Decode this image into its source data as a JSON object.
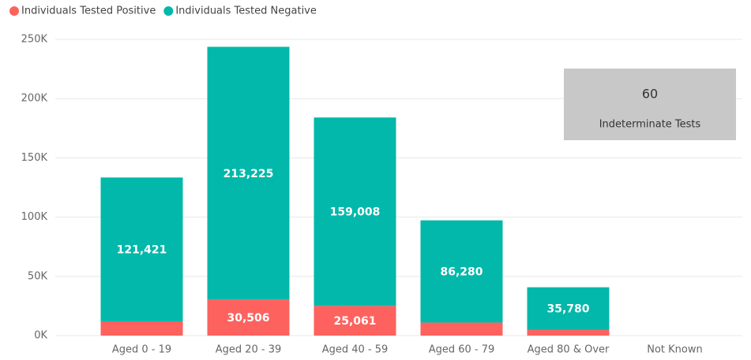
{
  "chart_data": {
    "type": "stacked_bar",
    "categories": [
      "Aged 0 - 19",
      "Aged 20 - 39",
      "Aged 40 - 59",
      "Aged 60 - 79",
      "Aged 80 & Over",
      "Not Known"
    ],
    "series": [
      {
        "name": "Individuals Tested Positive",
        "color": "#fd625e",
        "values": [
          12000,
          30506,
          25061,
          11000,
          5000,
          0
        ],
        "value_labels": [
          null,
          "30,506",
          "25,061",
          null,
          null,
          null
        ]
      },
      {
        "name": "Individuals Tested Negative",
        "color": "#01b8aa",
        "values": [
          121421,
          213225,
          159008,
          86280,
          35780,
          0
        ],
        "value_labels": [
          "121,421",
          "213,225",
          "159,008",
          "86,280",
          "35,780",
          null
        ]
      }
    ],
    "ylim": [
      0,
      250000
    ],
    "yticks": [
      {
        "value": 0,
        "label": "0K"
      },
      {
        "value": 50000,
        "label": "50K"
      },
      {
        "value": 100000,
        "label": "100K"
      },
      {
        "value": 150000,
        "label": "150K"
      },
      {
        "value": 200000,
        "label": "200K"
      },
      {
        "value": 250000,
        "label": "250K"
      }
    ],
    "grid": true,
    "legend": "top-left"
  },
  "card": {
    "value": 60,
    "label": "Indeterminate Tests"
  }
}
